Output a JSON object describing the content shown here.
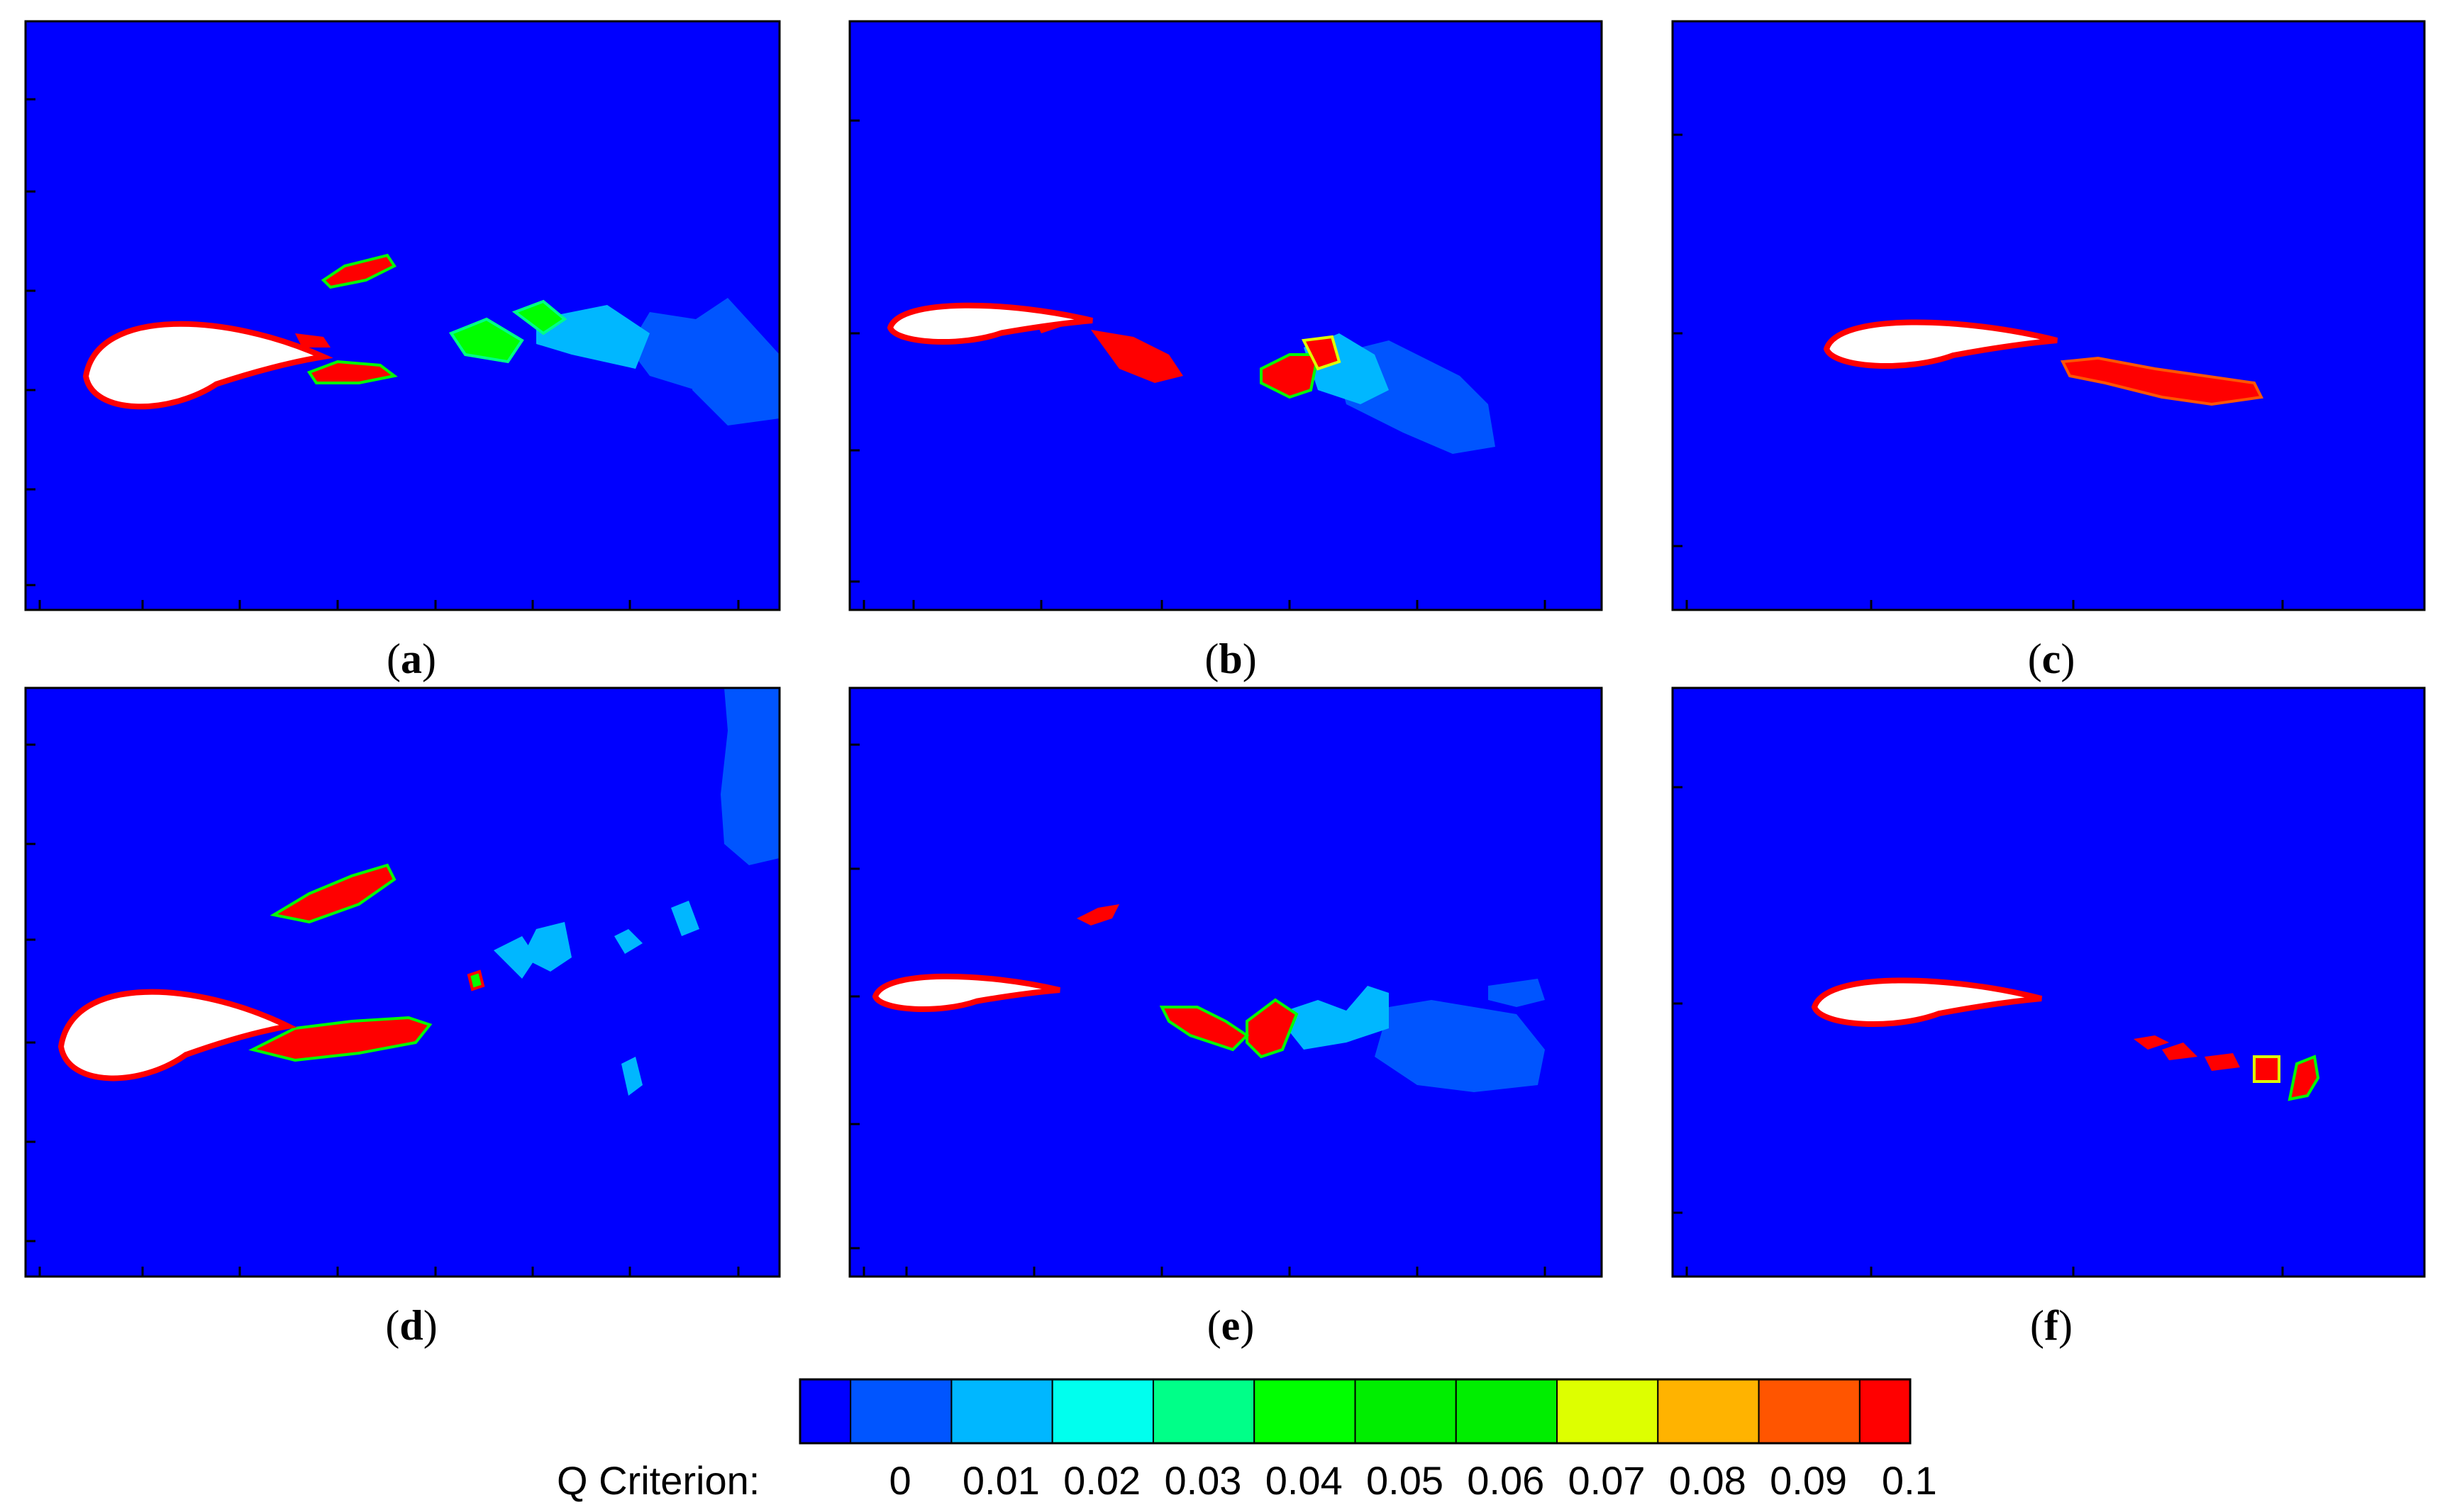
{
  "figure": {
    "panels": [
      {
        "id": "a",
        "label_open": "(",
        "label_letter": "a",
        "label_close": ")"
      },
      {
        "id": "b",
        "label_open": "(",
        "label_letter": "b",
        "label_close": ")"
      },
      {
        "id": "c",
        "label_open": "(",
        "label_letter": "c",
        "label_close": ")"
      },
      {
        "id": "d",
        "label_open": "(",
        "label_letter": "d",
        "label_close": ")"
      },
      {
        "id": "e",
        "label_open": "(",
        "label_letter": "e",
        "label_close": ")"
      },
      {
        "id": "f",
        "label_open": "(",
        "label_letter": "f",
        "label_close": ")"
      }
    ],
    "field_color": "#0000ff",
    "airfoil_color": "#ffffff"
  },
  "legend": {
    "title": "Q Criterion:",
    "tick_labels": [
      "0",
      "0.01",
      "0.02",
      "0.03",
      "0.04",
      "0.05",
      "0.06",
      "0.07",
      "0.08",
      "0.09",
      "0.1"
    ],
    "colors": [
      "#0000ff",
      "#0055ff",
      "#00b7ff",
      "#00ffee",
      "#00ff88",
      "#00ff00",
      "#00ee00",
      "#00ee00",
      "#ddff00",
      "#ffb300",
      "#ff5500",
      "#ff0000"
    ]
  }
}
